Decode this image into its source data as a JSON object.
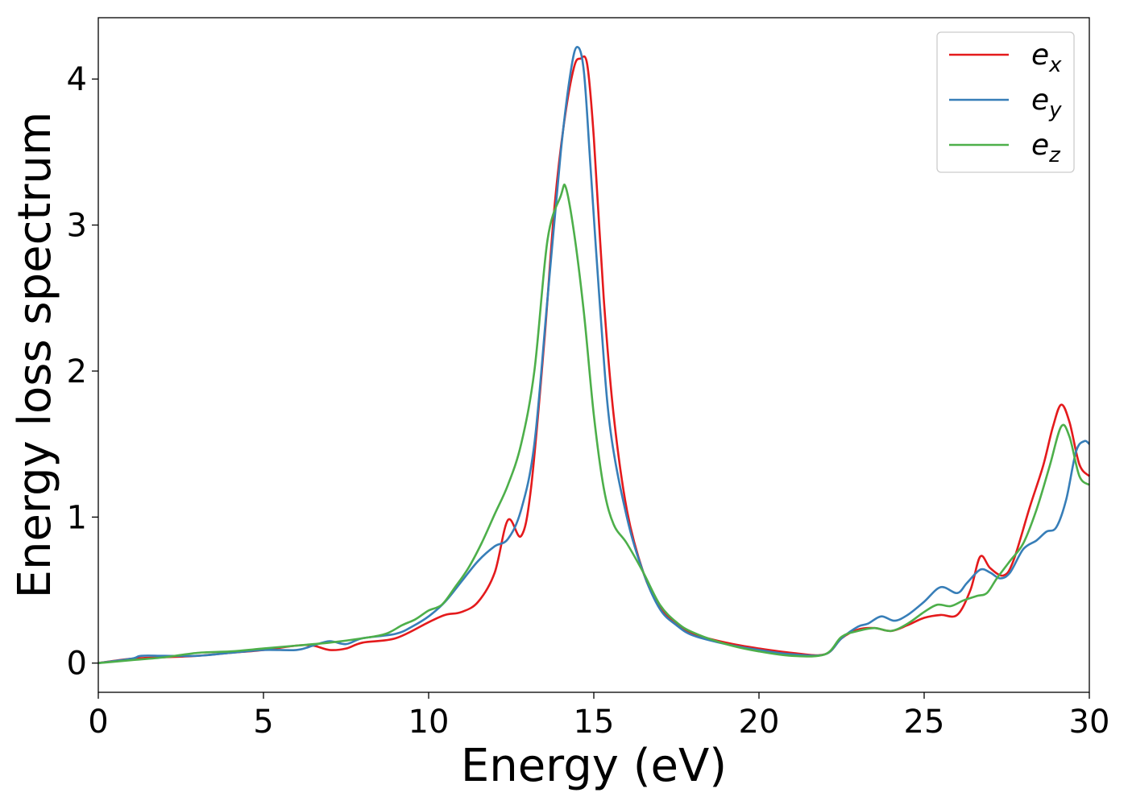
{
  "chart_data": {
    "type": "line",
    "title": "",
    "xlabel": "Energy (eV)",
    "ylabel": "Energy loss spectrum",
    "xlim": [
      0,
      30
    ],
    "ylim": [
      -0.2,
      4.42
    ],
    "xticks": [
      0,
      5,
      10,
      15,
      20,
      25,
      30
    ],
    "xtick_labels": [
      "0",
      "5",
      "10",
      "15",
      "20",
      "25",
      "30"
    ],
    "yticks": [
      0,
      1,
      2,
      3,
      4
    ],
    "ytick_labels": [
      "0",
      "1",
      "2",
      "3",
      "4"
    ],
    "grid": false,
    "legend_position": "top-right",
    "series": [
      {
        "name": "e_x",
        "label_base": "e",
        "label_sub": "x",
        "color": "#e41a1c",
        "points": [
          [
            0,
            0
          ],
          [
            1,
            0.03
          ],
          [
            2,
            0.04
          ],
          [
            3,
            0.05
          ],
          [
            4,
            0.07
          ],
          [
            5,
            0.09
          ],
          [
            6,
            0.12
          ],
          [
            6.5,
            0.12
          ],
          [
            7,
            0.09
          ],
          [
            7.5,
            0.1
          ],
          [
            8,
            0.14
          ],
          [
            9,
            0.17
          ],
          [
            10,
            0.28
          ],
          [
            10.5,
            0.33
          ],
          [
            11,
            0.35
          ],
          [
            11.5,
            0.42
          ],
          [
            12,
            0.62
          ],
          [
            12.4,
            0.98
          ],
          [
            12.8,
            0.87
          ],
          [
            13.1,
            1.2
          ],
          [
            13.5,
            2.2
          ],
          [
            13.8,
            3.1
          ],
          [
            14.1,
            3.7
          ],
          [
            14.4,
            4.08
          ],
          [
            14.6,
            4.14
          ],
          [
            14.8,
            4.1
          ],
          [
            15.0,
            3.6
          ],
          [
            15.3,
            2.5
          ],
          [
            15.6,
            1.7
          ],
          [
            16.0,
            1.05
          ],
          [
            16.5,
            0.62
          ],
          [
            17.0,
            0.38
          ],
          [
            17.5,
            0.27
          ],
          [
            18,
            0.2
          ],
          [
            19,
            0.14
          ],
          [
            20,
            0.1
          ],
          [
            21,
            0.07
          ],
          [
            22,
            0.06
          ],
          [
            22.5,
            0.17
          ],
          [
            23,
            0.23
          ],
          [
            23.5,
            0.24
          ],
          [
            24,
            0.22
          ],
          [
            24.5,
            0.26
          ],
          [
            25,
            0.31
          ],
          [
            25.5,
            0.33
          ],
          [
            26,
            0.33
          ],
          [
            26.4,
            0.5
          ],
          [
            26.7,
            0.73
          ],
          [
            27.0,
            0.65
          ],
          [
            27.4,
            0.6
          ],
          [
            27.7,
            0.7
          ],
          [
            28.2,
            1.07
          ],
          [
            28.6,
            1.35
          ],
          [
            28.9,
            1.62
          ],
          [
            29.15,
            1.77
          ],
          [
            29.4,
            1.65
          ],
          [
            29.7,
            1.36
          ],
          [
            30,
            1.28
          ]
        ]
      },
      {
        "name": "e_y",
        "label_base": "e",
        "label_sub": "y",
        "color": "#377eb8",
        "points": [
          [
            0,
            0
          ],
          [
            1,
            0.03
          ],
          [
            1.3,
            0.05
          ],
          [
            2,
            0.05
          ],
          [
            3,
            0.05
          ],
          [
            4,
            0.07
          ],
          [
            5,
            0.09
          ],
          [
            6,
            0.09
          ],
          [
            6.5,
            0.12
          ],
          [
            7,
            0.15
          ],
          [
            7.5,
            0.13
          ],
          [
            8,
            0.17
          ],
          [
            9,
            0.2
          ],
          [
            9.5,
            0.25
          ],
          [
            10,
            0.32
          ],
          [
            10.5,
            0.42
          ],
          [
            11,
            0.56
          ],
          [
            11.5,
            0.7
          ],
          [
            12,
            0.8
          ],
          [
            12.4,
            0.85
          ],
          [
            12.8,
            1.05
          ],
          [
            13.2,
            1.5
          ],
          [
            13.6,
            2.5
          ],
          [
            14.0,
            3.5
          ],
          [
            14.3,
            4.05
          ],
          [
            14.5,
            4.22
          ],
          [
            14.7,
            4.05
          ],
          [
            14.9,
            3.4
          ],
          [
            15.2,
            2.4
          ],
          [
            15.5,
            1.6
          ],
          [
            16.0,
            1.0
          ],
          [
            16.5,
            0.62
          ],
          [
            17.0,
            0.37
          ],
          [
            17.5,
            0.26
          ],
          [
            18,
            0.19
          ],
          [
            19,
            0.13
          ],
          [
            20,
            0.09
          ],
          [
            21,
            0.06
          ],
          [
            22,
            0.06
          ],
          [
            22.5,
            0.17
          ],
          [
            23,
            0.25
          ],
          [
            23.3,
            0.27
          ],
          [
            23.7,
            0.32
          ],
          [
            24.1,
            0.29
          ],
          [
            24.5,
            0.33
          ],
          [
            25,
            0.42
          ],
          [
            25.5,
            0.52
          ],
          [
            26,
            0.48
          ],
          [
            26.3,
            0.55
          ],
          [
            26.7,
            0.64
          ],
          [
            27.0,
            0.62
          ],
          [
            27.3,
            0.58
          ],
          [
            27.6,
            0.62
          ],
          [
            28,
            0.78
          ],
          [
            28.4,
            0.84
          ],
          [
            28.7,
            0.9
          ],
          [
            29.0,
            0.93
          ],
          [
            29.3,
            1.12
          ],
          [
            29.6,
            1.45
          ],
          [
            29.85,
            1.52
          ],
          [
            30,
            1.5
          ]
        ]
      },
      {
        "name": "e_z",
        "label_base": "e",
        "label_sub": "z",
        "color": "#4daf4a",
        "points": [
          [
            0,
            0
          ],
          [
            1,
            0.02
          ],
          [
            2,
            0.04
          ],
          [
            3,
            0.07
          ],
          [
            4,
            0.08
          ],
          [
            5,
            0.1
          ],
          [
            6,
            0.12
          ],
          [
            7,
            0.14
          ],
          [
            8,
            0.17
          ],
          [
            8.7,
            0.2
          ],
          [
            9.2,
            0.26
          ],
          [
            9.6,
            0.3
          ],
          [
            10,
            0.36
          ],
          [
            10.4,
            0.4
          ],
          [
            10.8,
            0.52
          ],
          [
            11.2,
            0.65
          ],
          [
            11.6,
            0.82
          ],
          [
            12.0,
            1.02
          ],
          [
            12.4,
            1.22
          ],
          [
            12.8,
            1.5
          ],
          [
            13.2,
            2.0
          ],
          [
            13.6,
            2.9
          ],
          [
            14.0,
            3.2
          ],
          [
            14.15,
            3.26
          ],
          [
            14.4,
            2.95
          ],
          [
            14.7,
            2.4
          ],
          [
            15.0,
            1.7
          ],
          [
            15.3,
            1.2
          ],
          [
            15.6,
            0.95
          ],
          [
            16.0,
            0.82
          ],
          [
            16.5,
            0.62
          ],
          [
            17,
            0.4
          ],
          [
            17.5,
            0.28
          ],
          [
            18,
            0.21
          ],
          [
            19,
            0.13
          ],
          [
            20,
            0.08
          ],
          [
            21,
            0.05
          ],
          [
            22,
            0.06
          ],
          [
            22.5,
            0.18
          ],
          [
            23,
            0.22
          ],
          [
            23.5,
            0.24
          ],
          [
            24,
            0.22
          ],
          [
            24.5,
            0.27
          ],
          [
            25,
            0.35
          ],
          [
            25.4,
            0.4
          ],
          [
            25.8,
            0.39
          ],
          [
            26.2,
            0.43
          ],
          [
            26.6,
            0.46
          ],
          [
            26.9,
            0.48
          ],
          [
            27.2,
            0.58
          ],
          [
            27.6,
            0.7
          ],
          [
            28,
            0.82
          ],
          [
            28.4,
            1.05
          ],
          [
            28.8,
            1.35
          ],
          [
            29.15,
            1.62
          ],
          [
            29.4,
            1.55
          ],
          [
            29.7,
            1.28
          ],
          [
            30,
            1.22
          ]
        ]
      }
    ]
  }
}
